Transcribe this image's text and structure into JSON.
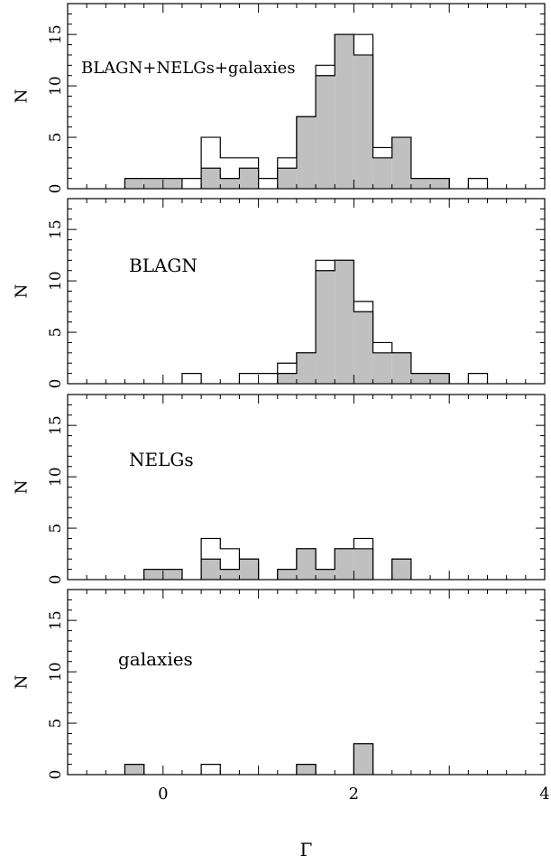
{
  "chart_data": [
    {
      "type": "histogram",
      "label": "BLAGN+NELGs+galaxies",
      "ylabel": "N",
      "xlim": [
        -1,
        4
      ],
      "ylim": [
        0,
        18
      ],
      "yticks": [
        0,
        5,
        10,
        15
      ],
      "bin_width": 0.2,
      "bin_starts": [
        -0.4,
        -0.2,
        0.0,
        0.2,
        0.4,
        0.6,
        0.8,
        1.0,
        1.2,
        1.4,
        1.6,
        1.8,
        2.0,
        2.2,
        2.4,
        2.6,
        2.8,
        3.0,
        3.2
      ],
      "series": [
        {
          "values": [
            1,
            1,
            1,
            1,
            5,
            3,
            3,
            1,
            3,
            7,
            12,
            15,
            15,
            4,
            5,
            1,
            1,
            0,
            1
          ],
          "fill": "#ffffff"
        },
        {
          "values": [
            1,
            1,
            1,
            0,
            2,
            1,
            2,
            0,
            2,
            7,
            11,
            15,
            13,
            3,
            5,
            1,
            1,
            0,
            0
          ],
          "fill": "#c0c0c0"
        }
      ]
    },
    {
      "type": "histogram",
      "label": "BLAGN",
      "ylabel": "N",
      "xlim": [
        -1,
        4
      ],
      "ylim": [
        0,
        18
      ],
      "yticks": [
        0,
        5,
        10,
        15
      ],
      "bin_width": 0.2,
      "bin_starts": [
        -0.4,
        -0.2,
        0.0,
        0.2,
        0.4,
        0.6,
        0.8,
        1.0,
        1.2,
        1.4,
        1.6,
        1.8,
        2.0,
        2.2,
        2.4,
        2.6,
        2.8,
        3.0,
        3.2
      ],
      "series": [
        {
          "values": [
            0,
            0,
            0,
            1,
            0,
            0,
            1,
            1,
            2,
            3,
            12,
            12,
            8,
            4,
            3,
            1,
            1,
            0,
            1
          ],
          "fill": "#ffffff"
        },
        {
          "values": [
            0,
            0,
            0,
            0,
            0,
            0,
            0,
            0,
            1,
            3,
            11,
            12,
            7,
            3,
            3,
            1,
            1,
            0,
            0
          ],
          "fill": "#c0c0c0"
        }
      ]
    },
    {
      "type": "histogram",
      "label": "NELGs",
      "ylabel": "N",
      "xlim": [
        -1,
        4
      ],
      "ylim": [
        0,
        18
      ],
      "yticks": [
        0,
        5,
        10,
        15
      ],
      "bin_width": 0.2,
      "bin_starts": [
        -0.4,
        -0.2,
        0.0,
        0.2,
        0.4,
        0.6,
        0.8,
        1.0,
        1.2,
        1.4,
        1.6,
        1.8,
        2.0,
        2.2,
        2.4,
        2.6,
        2.8,
        3.0,
        3.2
      ],
      "series": [
        {
          "values": [
            0,
            1,
            1,
            0,
            4,
            3,
            2,
            0,
            1,
            3,
            1,
            3,
            4,
            0,
            2,
            0,
            0,
            0,
            0
          ],
          "fill": "#ffffff"
        },
        {
          "values": [
            0,
            1,
            1,
            0,
            2,
            1,
            2,
            0,
            1,
            3,
            1,
            3,
            3,
            0,
            2,
            0,
            0,
            0,
            0
          ],
          "fill": "#c0c0c0"
        }
      ]
    },
    {
      "type": "histogram",
      "label": "galaxies",
      "ylabel": "N",
      "xlim": [
        -1,
        4
      ],
      "ylim": [
        0,
        18
      ],
      "yticks": [
        0,
        5,
        10,
        15
      ],
      "xticks": [
        0,
        2,
        4
      ],
      "xlabel": "Γ",
      "bin_width": 0.2,
      "bin_starts": [
        -0.4,
        -0.2,
        0.0,
        0.2,
        0.4,
        0.6,
        0.8,
        1.0,
        1.2,
        1.4,
        1.6,
        1.8,
        2.0,
        2.2,
        2.4,
        2.6,
        2.8,
        3.0,
        3.2
      ],
      "series": [
        {
          "values": [
            1,
            0,
            0,
            0,
            1,
            0,
            0,
            0,
            0,
            1,
            0,
            0,
            3,
            0,
            0,
            0,
            0,
            0,
            0
          ],
          "fill": "#ffffff"
        },
        {
          "values": [
            1,
            0,
            0,
            0,
            0,
            0,
            0,
            0,
            0,
            1,
            0,
            0,
            3,
            0,
            0,
            0,
            0,
            0,
            0
          ],
          "fill": "#c0c0c0"
        }
      ]
    }
  ]
}
